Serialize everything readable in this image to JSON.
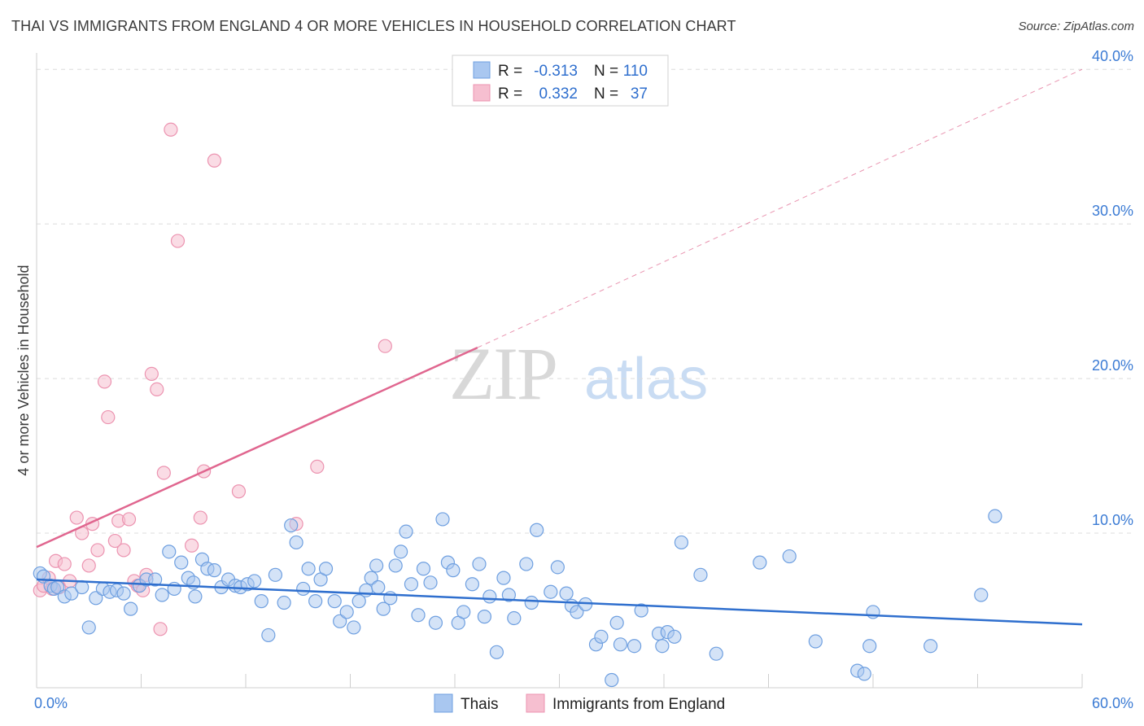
{
  "header": {
    "title": "THAI VS IMMIGRANTS FROM ENGLAND 4 OR MORE VEHICLES IN HOUSEHOLD CORRELATION CHART",
    "source": "Source: ZipAtlas.com"
  },
  "watermark": {
    "part1": "ZIP",
    "part2": "atlas"
  },
  "colors": {
    "thais_fill": "#a9c7f0",
    "thais_stroke": "#6e9fe0",
    "thais_line": "#2f6fce",
    "england_fill": "#f6bfd0",
    "england_stroke": "#ec93b0",
    "england_line": "#e0668f",
    "grid": "#dcdcdc",
    "axis_text": "#3b7bd4"
  },
  "legend_box": {
    "row1": {
      "r_label": "R =",
      "r_value": "-0.313",
      "n_label": "N =",
      "n_value": "110"
    },
    "row2": {
      "r_label": "R =",
      "r_value": "0.332",
      "n_label": "N =",
      "n_value": "37"
    }
  },
  "chart_data": {
    "type": "scatter",
    "ylabel": "4 or more Vehicles in Household",
    "xlim": [
      0,
      60
    ],
    "ylim": [
      0,
      40.8
    ],
    "x_ticks": [
      "0.0%",
      "60.0%"
    ],
    "y_ticks": [
      {
        "value": 10,
        "label": "10.0%"
      },
      {
        "value": 20,
        "label": "20.0%"
      },
      {
        "value": 30,
        "label": "30.0%"
      },
      {
        "value": 40,
        "label": "40.0%"
      }
    ],
    "grid": "horizontal dashed",
    "legend": [
      "Thais",
      "Immigrants from England"
    ],
    "series": [
      {
        "name": "Thais",
        "trend": {
          "x1": 0,
          "y1": 7.0,
          "x2": 60,
          "y2": 4.1
        },
        "points": [
          [
            0.2,
            7.4
          ],
          [
            0.4,
            7.2
          ],
          [
            0.8,
            6.6
          ],
          [
            1.0,
            6.4
          ],
          [
            1.2,
            6.5
          ],
          [
            1.6,
            5.9
          ],
          [
            2.0,
            6.1
          ],
          [
            2.6,
            6.5
          ],
          [
            3.0,
            3.9
          ],
          [
            3.4,
            5.8
          ],
          [
            3.8,
            6.4
          ],
          [
            4.2,
            6.2
          ],
          [
            4.6,
            6.3
          ],
          [
            5.0,
            6.1
          ],
          [
            5.4,
            5.1
          ],
          [
            5.9,
            6.6
          ],
          [
            6.3,
            7.0
          ],
          [
            6.8,
            7.0
          ],
          [
            7.2,
            6.0
          ],
          [
            7.6,
            8.8
          ],
          [
            7.9,
            6.4
          ],
          [
            8.3,
            8.1
          ],
          [
            8.7,
            7.1
          ],
          [
            9.1,
            5.9
          ],
          [
            9.5,
            8.3
          ],
          [
            9.8,
            7.7
          ],
          [
            10.2,
            7.6
          ],
          [
            10.6,
            6.5
          ],
          [
            11.0,
            7.0
          ],
          [
            11.4,
            6.6
          ],
          [
            11.7,
            6.5
          ],
          [
            12.1,
            6.7
          ],
          [
            12.5,
            6.9
          ],
          [
            12.9,
            5.6
          ],
          [
            13.3,
            3.4
          ],
          [
            13.7,
            7.3
          ],
          [
            14.2,
            5.5
          ],
          [
            14.6,
            10.5
          ],
          [
            14.9,
            9.4
          ],
          [
            15.3,
            6.4
          ],
          [
            15.6,
            7.7
          ],
          [
            16.0,
            5.6
          ],
          [
            16.3,
            7.0
          ],
          [
            16.6,
            7.7
          ],
          [
            17.1,
            5.6
          ],
          [
            17.4,
            4.3
          ],
          [
            17.8,
            4.9
          ],
          [
            18.2,
            3.9
          ],
          [
            18.5,
            5.6
          ],
          [
            18.9,
            6.3
          ],
          [
            19.2,
            7.1
          ],
          [
            19.6,
            6.5
          ],
          [
            19.9,
            5.1
          ],
          [
            20.3,
            5.8
          ],
          [
            20.6,
            7.9
          ],
          [
            20.9,
            8.8
          ],
          [
            21.2,
            10.1
          ],
          [
            21.5,
            6.7
          ],
          [
            21.9,
            4.7
          ],
          [
            22.2,
            7.7
          ],
          [
            22.6,
            6.8
          ],
          [
            22.9,
            4.2
          ],
          [
            23.3,
            10.9
          ],
          [
            23.6,
            8.1
          ],
          [
            23.9,
            7.6
          ],
          [
            24.2,
            4.2
          ],
          [
            24.5,
            4.9
          ],
          [
            25.0,
            6.7
          ],
          [
            25.4,
            8.0
          ],
          [
            25.7,
            4.6
          ],
          [
            26.0,
            5.9
          ],
          [
            26.4,
            2.3
          ],
          [
            26.8,
            7.1
          ],
          [
            27.1,
            6.0
          ],
          [
            27.4,
            4.5
          ],
          [
            28.1,
            8.0
          ],
          [
            28.4,
            5.5
          ],
          [
            28.7,
            10.2
          ],
          [
            29.5,
            6.2
          ],
          [
            29.9,
            7.8
          ],
          [
            30.4,
            6.1
          ],
          [
            30.7,
            5.3
          ],
          [
            31.0,
            4.9
          ],
          [
            31.5,
            5.4
          ],
          [
            32.1,
            2.8
          ],
          [
            32.4,
            3.3
          ],
          [
            33.3,
            4.2
          ],
          [
            33.5,
            2.8
          ],
          [
            34.3,
            2.7
          ],
          [
            34.7,
            5.0
          ],
          [
            35.7,
            3.5
          ],
          [
            35.9,
            2.7
          ],
          [
            36.2,
            3.6
          ],
          [
            36.6,
            3.3
          ],
          [
            37.0,
            9.4
          ],
          [
            38.1,
            7.3
          ],
          [
            39.0,
            2.2
          ],
          [
            41.5,
            8.1
          ],
          [
            43.2,
            8.5
          ],
          [
            44.7,
            3.0
          ],
          [
            47.1,
            1.1
          ],
          [
            47.5,
            0.9
          ],
          [
            47.8,
            2.7
          ],
          [
            48.0,
            4.9
          ],
          [
            51.3,
            2.7
          ],
          [
            54.2,
            6.0
          ],
          [
            55.0,
            11.1
          ],
          [
            33.0,
            0.5
          ],
          [
            19.5,
            7.9
          ],
          [
            9.0,
            6.8
          ]
        ]
      },
      {
        "name": "Immigrants from England",
        "trend": {
          "x1": 0,
          "y1": 9.1,
          "x2": 25.3,
          "y2": 22.0,
          "x2_dashed": 60.0,
          "y2_dashed": 40.0
        },
        "points": [
          [
            0.2,
            6.3
          ],
          [
            0.4,
            6.6
          ],
          [
            0.7,
            7.1
          ],
          [
            0.9,
            6.4
          ],
          [
            1.1,
            8.2
          ],
          [
            1.3,
            6.5
          ],
          [
            1.6,
            8.0
          ],
          [
            1.9,
            6.9
          ],
          [
            2.3,
            11.0
          ],
          [
            2.6,
            10.0
          ],
          [
            3.0,
            7.9
          ],
          [
            3.2,
            10.6
          ],
          [
            3.5,
            8.9
          ],
          [
            3.9,
            19.8
          ],
          [
            4.1,
            17.5
          ],
          [
            4.5,
            9.5
          ],
          [
            4.7,
            10.8
          ],
          [
            5.0,
            8.9
          ],
          [
            5.3,
            10.9
          ],
          [
            5.6,
            6.9
          ],
          [
            5.8,
            6.6
          ],
          [
            6.1,
            6.3
          ],
          [
            6.3,
            7.3
          ],
          [
            6.6,
            20.3
          ],
          [
            6.9,
            19.3
          ],
          [
            7.1,
            3.8
          ],
          [
            7.3,
            13.9
          ],
          [
            7.7,
            36.1
          ],
          [
            8.1,
            28.9
          ],
          [
            8.9,
            9.2
          ],
          [
            9.4,
            11.0
          ],
          [
            9.6,
            14.0
          ],
          [
            10.2,
            34.1
          ],
          [
            11.6,
            12.7
          ],
          [
            14.9,
            10.6
          ],
          [
            16.1,
            14.3
          ],
          [
            20.0,
            22.1
          ]
        ]
      }
    ]
  }
}
